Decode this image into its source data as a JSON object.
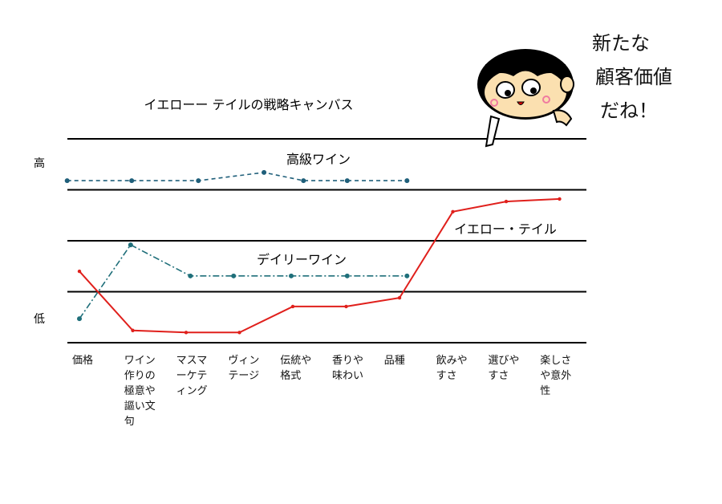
{
  "chart_data": {
    "type": "line",
    "title": "イエローー テイルの戦略キャンバス",
    "ylabel_high": "高",
    "ylabel_low": "低",
    "ylim": [
      0,
      4
    ],
    "grid": true,
    "categories": [
      "価格",
      "ワイン作りの極意や謳い文句",
      "マスマーケティング",
      "ヴィンテージ",
      "伝統や格式",
      "香りや味わい",
      "品種",
      "飲みやすさ",
      "選びやすさ",
      "楽しさや意外性"
    ],
    "series": [
      {
        "name": "高級ワイン",
        "color": "#1f5f7a",
        "style": "dashed",
        "x": [
          -0.23,
          0.98,
          2.23,
          3.46,
          4.2,
          5.02,
          6.14
        ],
        "values": [
          3.18,
          3.18,
          3.18,
          3.34,
          3.18,
          3.18,
          3.18
        ]
      },
      {
        "name": "デイリーワイン",
        "color": "#1f6f7a",
        "style": "dashdot",
        "x": [
          0,
          0.96,
          2.08,
          2.89,
          3.97,
          5.02,
          6.14
        ],
        "values": [
          0.47,
          1.92,
          1.31,
          1.31,
          1.31,
          1.31,
          1.31
        ]
      },
      {
        "name": "イエロー・テイル",
        "color": "#e0201c",
        "style": "solid",
        "x": [
          0,
          1,
          2,
          3,
          4,
          5,
          6,
          7,
          8,
          9
        ],
        "values": [
          1.4,
          0.24,
          0.2,
          0.2,
          0.71,
          0.71,
          0.88,
          2.57,
          2.77,
          2.82
        ]
      }
    ]
  },
  "comment": [
    "新たな",
    "顧客価値",
    "だね！"
  ]
}
